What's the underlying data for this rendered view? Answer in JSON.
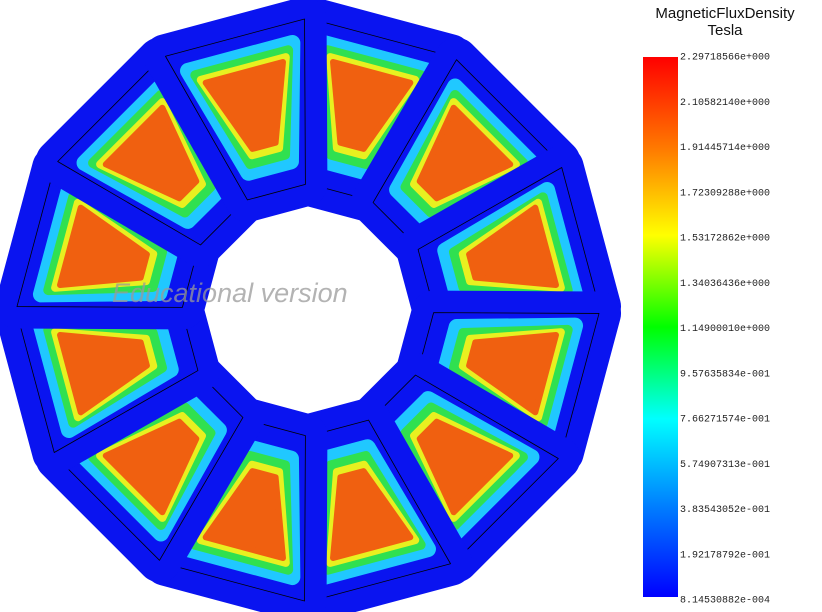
{
  "legend": {
    "title": "MagneticFluxDensity",
    "unit": "Tesla",
    "ticks": [
      "2.29718566e+000",
      "2.10582140e+000",
      "1.91445714e+000",
      "1.72309288e+000",
      "1.53172862e+000",
      "1.34036436e+000",
      "1.14900010e+000",
      "9.57635834e-001",
      "7.66271574e-001",
      "5.74907313e-001",
      "3.83543052e-001",
      "1.92178792e-001",
      "8.14530882e-004"
    ]
  },
  "watermark": "Educational version"
}
